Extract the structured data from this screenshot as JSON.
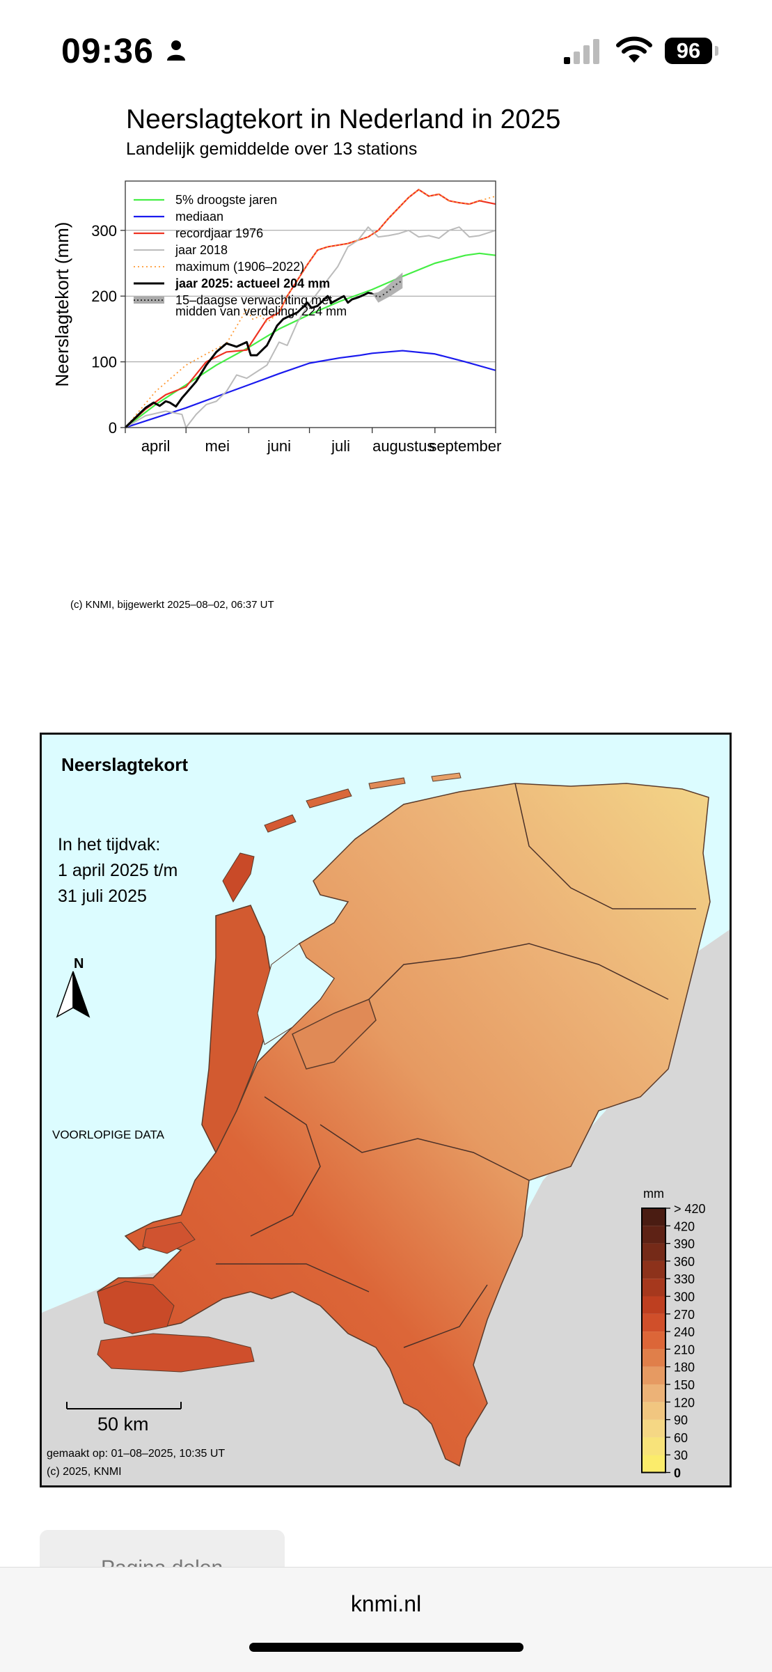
{
  "status_bar": {
    "time": "09:36",
    "battery": "96",
    "icons": [
      "person-icon",
      "cellular-signal-icon",
      "wifi-icon",
      "battery-icon"
    ]
  },
  "chart": {
    "title": "Neerslagtekort in Nederland in 2025",
    "subtitle": "Landelijk gemiddelde over 13 stations",
    "credit": "(c) KNMI, bijgewerkt 2025–08–02, 06:37 UT",
    "legend_note": "midden van verdeling: 224 mm"
  },
  "chart_data": {
    "type": "line",
    "title": "Neerslagtekort in Nederland in 2025",
    "subtitle": "Landelijk gemiddelde over 13 stations",
    "xlabel": "",
    "ylabel": "Neerslagtekort (mm)",
    "ylim": [
      0,
      375
    ],
    "xlim": [
      0,
      183
    ],
    "yticks": [
      0,
      100,
      200,
      300
    ],
    "ytick_labels": [
      "0",
      "100",
      "200",
      "300"
    ],
    "month_labels": [
      "april",
      "mei",
      "juni",
      "juli",
      "augustus",
      "september"
    ],
    "month_centers": [
      15,
      45.5,
      76,
      106.5,
      137.5,
      168
    ],
    "month_boundaries": [
      0,
      30,
      61,
      91,
      122,
      153,
      183
    ],
    "grid": true,
    "legend_position": "top-left",
    "series": [
      {
        "name": "5% droogste jaren",
        "color": "#44ee44",
        "dash": "solid",
        "width": 2.2,
        "x": [
          0,
          15,
          30,
          45,
          61,
          76,
          91,
          106,
          122,
          137,
          153,
          168,
          175,
          183
        ],
        "y": [
          0,
          35,
          65,
          95,
          122,
          150,
          172,
          192,
          210,
          230,
          250,
          262,
          265,
          262
        ]
      },
      {
        "name": "mediaan",
        "color": "#1a1aee",
        "dash": "solid",
        "width": 2.2,
        "x": [
          0,
          15,
          30,
          45,
          61,
          76,
          91,
          106,
          116,
          122,
          137,
          153,
          168,
          183
        ],
        "y": [
          0,
          15,
          30,
          47,
          65,
          82,
          98,
          106,
          110,
          113,
          117,
          112,
          100,
          87
        ]
      },
      {
        "name": "recordjaar 1976",
        "color": "#ee3322",
        "dash": "solid",
        "width": 2.2,
        "x": [
          0,
          10,
          20,
          30,
          40,
          50,
          60,
          70,
          76,
          80,
          90,
          95,
          100,
          110,
          120,
          125,
          130,
          140,
          145,
          150,
          155,
          160,
          165,
          170,
          175,
          183
        ],
        "y": [
          0,
          28,
          50,
          62,
          100,
          115,
          118,
          165,
          175,
          200,
          248,
          270,
          275,
          280,
          290,
          300,
          318,
          350,
          362,
          352,
          355,
          345,
          342,
          340,
          345,
          340
        ]
      },
      {
        "name": "jaar 2018",
        "color": "#bbbbbb",
        "dash": "solid",
        "width": 2.0,
        "x": [
          0,
          10,
          20,
          28,
          30,
          35,
          40,
          45,
          50,
          55,
          60,
          65,
          70,
          76,
          80,
          85,
          90,
          95,
          100,
          105,
          110,
          115,
          120,
          125,
          130,
          135,
          140,
          145,
          150,
          155,
          160,
          165,
          170,
          175,
          183
        ],
        "y": [
          0,
          18,
          25,
          20,
          0,
          20,
          35,
          40,
          55,
          80,
          75,
          85,
          95,
          130,
          125,
          160,
          185,
          205,
          225,
          245,
          275,
          285,
          305,
          290,
          292,
          295,
          300,
          290,
          292,
          288,
          300,
          305,
          290,
          292,
          300
        ]
      },
      {
        "name": "maximum (1906–2022)",
        "color": "#ff9933",
        "dash": "2,4",
        "width": 1.8,
        "x": [
          0,
          15,
          30,
          40,
          50,
          60,
          63,
          67,
          70,
          76,
          80,
          90,
          95,
          100,
          110,
          120,
          125,
          130,
          140,
          145,
          150,
          155,
          160,
          165,
          170,
          175,
          183
        ],
        "y": [
          0,
          55,
          95,
          112,
          128,
          180,
          165,
          170,
          160,
          175,
          200,
          248,
          270,
          275,
          280,
          290,
          300,
          318,
          350,
          362,
          352,
          355,
          345,
          342,
          340,
          345,
          352
        ]
      },
      {
        "name": "jaar 2025: actueel 204 mm",
        "color": "#000000",
        "dash": "solid",
        "width": 3.0,
        "x": [
          0,
          6,
          10,
          14,
          17,
          20,
          22,
          25,
          28,
          30,
          35,
          40,
          45,
          50,
          55,
          60,
          62,
          65,
          70,
          75,
          78,
          80,
          85,
          90,
          92,
          95,
          100,
          102,
          105,
          108,
          110,
          112,
          115,
          118,
          120,
          122
        ],
        "y": [
          0,
          18,
          30,
          38,
          33,
          40,
          38,
          32,
          45,
          52,
          70,
          95,
          115,
          128,
          123,
          130,
          110,
          110,
          125,
          155,
          165,
          168,
          175,
          190,
          182,
          185,
          200,
          190,
          195,
          200,
          190,
          195,
          198,
          202,
          205,
          204
        ]
      },
      {
        "name": "15–daagse verwachting met midden van verdeling: 224 mm",
        "color": "#333333",
        "dash": "2,4",
        "width": 2.0,
        "band": true,
        "x": [
          122,
          125,
          128,
          131,
          134,
          137
        ],
        "y": [
          204,
          198,
          203,
          210,
          218,
          224
        ],
        "low": [
          204,
          190,
          195,
          200,
          206,
          212
        ],
        "high": [
          204,
          206,
          212,
          220,
          228,
          236
        ]
      }
    ]
  },
  "map": {
    "title": "Neerslagtekort",
    "period_line1": "In het tijdvak:",
    "period_line2": "1 april 2025 t/m",
    "period_line3": "31 juli 2025",
    "north_label": "N",
    "preliminary": "VOORLOPIGE DATA",
    "scale_label": "50 km",
    "made_on": "gemaakt op: 01–08–2025, 10:35 UT",
    "copyright": "(c) 2025, KNMI",
    "legend_unit": "mm",
    "legend_labels": [
      "> 420",
      "420",
      "390",
      "360",
      "330",
      "300",
      "270",
      "240",
      "210",
      "180",
      "150",
      "120",
      "90",
      "60",
      "30",
      "0"
    ],
    "legend_colors": [
      "#4a1c12",
      "#5e2215",
      "#752a18",
      "#8d321b",
      "#a6381d",
      "#be3f20",
      "#d04f2a",
      "#dc6638",
      "#e07f4a",
      "#e69a62",
      "#ecb277",
      "#f1c680",
      "#f5d784",
      "#f8e37a",
      "#fbec6b"
    ]
  },
  "share_button": {
    "label": "Pagina delen"
  },
  "browser": {
    "domain": "knmi.nl"
  },
  "colors": {
    "sea": "#dcfcff",
    "land_outside": "#d7d7d7",
    "accent": "#ee3322"
  }
}
